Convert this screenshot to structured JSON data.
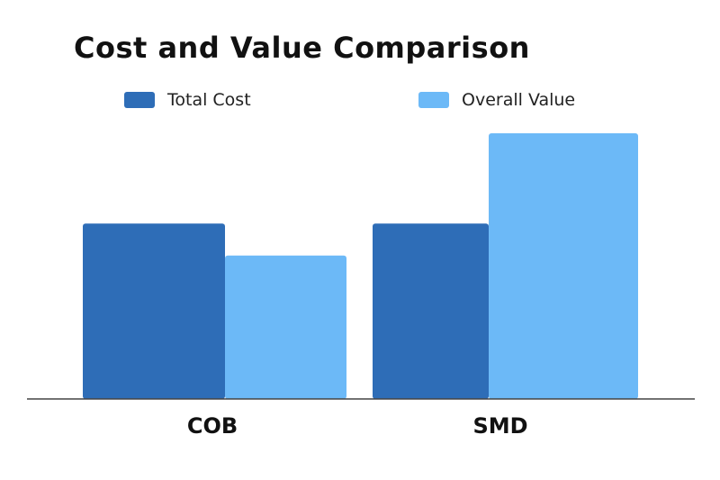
{
  "chart_data": {
    "type": "bar",
    "title": "Cost and Value Comparison",
    "categories": [
      "COB",
      "SMD"
    ],
    "series": [
      {
        "name": "Total Cost",
        "values": [
          66,
          66
        ],
        "color": "#2e6db7"
      },
      {
        "name": "Overall Value",
        "values": [
          54,
          100
        ],
        "color": "#6cb9f7"
      }
    ],
    "xlabel": "",
    "ylabel": "",
    "ylim": [
      0,
      100
    ],
    "grid": false,
    "legend": "top"
  }
}
